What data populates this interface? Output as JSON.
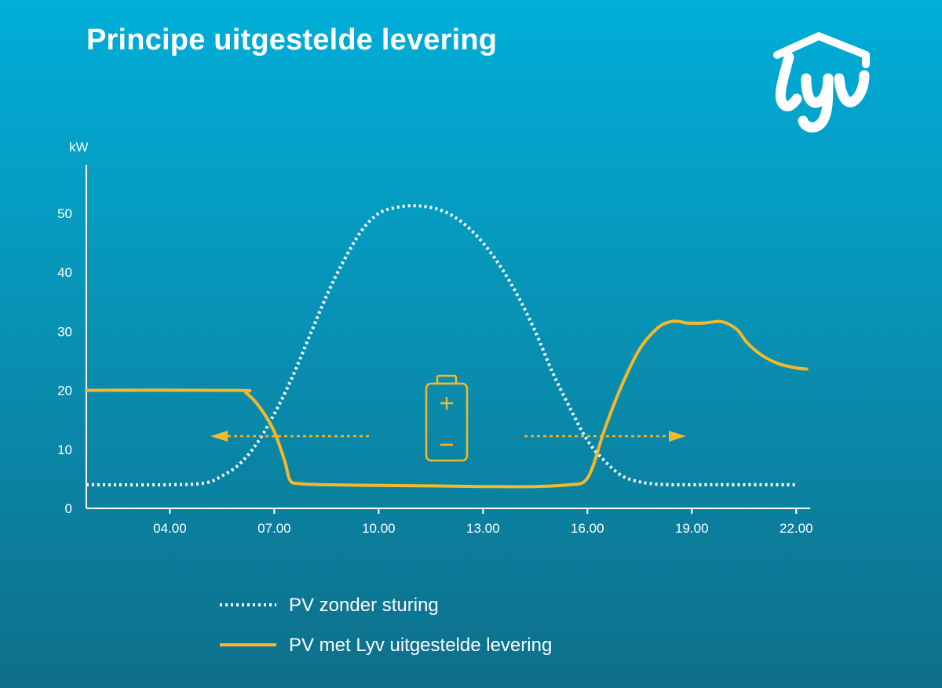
{
  "title": "Principe uitgestelde levering",
  "logo": {
    "text": "lyv",
    "icon": "lyv-house-logo"
  },
  "colors": {
    "accent": "#f4b82a",
    "dotted": "#ffffff",
    "axis": "#ffffff"
  },
  "chart_data": {
    "type": "line",
    "ylabel": "kW",
    "xlabel": "",
    "xlim": [
      1.6,
      22.4
    ],
    "ylim": [
      0,
      55
    ],
    "yticks": [
      0,
      10,
      20,
      30,
      40,
      50
    ],
    "xticks": [
      4,
      7,
      10,
      13,
      16,
      19,
      22
    ],
    "xtick_labels": [
      "04.00",
      "07.00",
      "10.00",
      "13.00",
      "16.00",
      "19.00",
      "22.00"
    ],
    "grid": false,
    "legend_position": "bottom",
    "series": [
      {
        "name": "PV zonder sturing",
        "style": "dotted",
        "color": "#ffffff",
        "x": [
          1.6,
          4,
          5,
          5.5,
          6,
          6.5,
          7,
          7.5,
          8,
          8.5,
          9,
          9.5,
          10,
          10.5,
          11,
          11.5,
          12,
          12.5,
          13,
          13.5,
          14,
          14.5,
          15,
          15.5,
          16,
          16.5,
          17,
          17.5,
          18,
          18.5,
          19,
          20,
          22
        ],
        "y": [
          4,
          4,
          4.3,
          5.5,
          7.5,
          11,
          16,
          22,
          29,
          36,
          42,
          47,
          50,
          51,
          51.3,
          51,
          50,
          48,
          45,
          41,
          36,
          30,
          23,
          17,
          11.5,
          8,
          5.5,
          4.5,
          4.1,
          4,
          4,
          4,
          4
        ]
      },
      {
        "name": "PV met Lyv uitgestelde levering",
        "style": "solid",
        "color": "#f4b82a",
        "x": [
          1.6,
          5.9,
          6.2,
          6.6,
          7,
          7.3,
          7.45,
          7.7,
          8.5,
          10,
          11.5,
          13,
          14.5,
          15.5,
          15.9,
          16.15,
          16.5,
          17,
          17.5,
          18,
          18.35,
          18.6,
          18.9,
          19.3,
          19.6,
          19.9,
          20.3,
          20.6,
          21,
          21.5,
          22,
          22.3
        ],
        "y": [
          20,
          20,
          19.5,
          17,
          13,
          8,
          4.8,
          4.2,
          4,
          3.9,
          3.8,
          3.7,
          3.7,
          4,
          4.5,
          7,
          13.5,
          21,
          27,
          30.5,
          31.6,
          31.7,
          31.4,
          31.4,
          31.6,
          31.6,
          30.3,
          28,
          26,
          24.5,
          23.8,
          23.6
        ]
      }
    ],
    "annotations": [
      {
        "type": "battery-icon",
        "signs": [
          "+",
          "−"
        ]
      },
      {
        "type": "arrow",
        "direction": "left"
      },
      {
        "type": "arrow",
        "direction": "right"
      }
    ]
  }
}
